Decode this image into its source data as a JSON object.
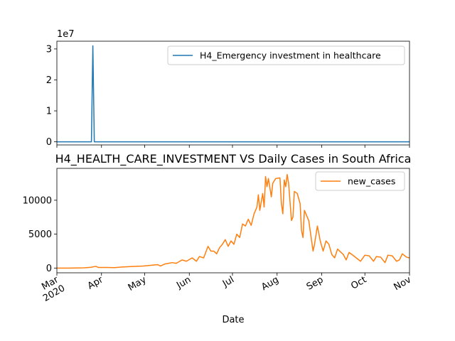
{
  "chart_data": [
    {
      "type": "line",
      "title": "",
      "xlabel": "",
      "ylabel": "",
      "x_axis": "date",
      "xlim": [
        "2020-03-01",
        "2020-11-01"
      ],
      "ylim": [
        -1000000,
        32500000
      ],
      "y_offset_label": "1e7",
      "yticks": [
        0,
        10000000,
        20000000,
        30000000
      ],
      "ytick_labels": [
        "0",
        "1",
        "2",
        "3"
      ],
      "legend": "upper right",
      "series": [
        {
          "name": "H4_Emergency investment in healthcare",
          "color": "#1f77b4",
          "points": [
            [
              "2020-03-01",
              0
            ],
            [
              "2020-03-25",
              0
            ],
            [
              "2020-03-26",
              31000000
            ],
            [
              "2020-03-27",
              0
            ],
            [
              "2020-11-01",
              0
            ]
          ]
        }
      ]
    },
    {
      "type": "line",
      "title": "H4_HEALTH_CARE_INVESTMENT VS Daily Cases in South Africa",
      "xlabel": "Date",
      "ylabel": "",
      "x_axis": "date",
      "xlim": [
        "2020-03-01",
        "2020-11-01"
      ],
      "ylim": [
        -700,
        14700
      ],
      "yticks": [
        0,
        5000,
        10000
      ],
      "ytick_labels": [
        "0",
        "5000",
        "10000"
      ],
      "xticks": [
        {
          "date": "2020-03-01",
          "label": "Mar",
          "sub": "2020"
        },
        {
          "date": "2020-04-01",
          "label": "Apr",
          "sub": ""
        },
        {
          "date": "2020-05-01",
          "label": "May",
          "sub": ""
        },
        {
          "date": "2020-06-01",
          "label": "Jun",
          "sub": ""
        },
        {
          "date": "2020-07-01",
          "label": "Jul",
          "sub": ""
        },
        {
          "date": "2020-08-01",
          "label": "Aug",
          "sub": ""
        },
        {
          "date": "2020-09-01",
          "label": "Sep",
          "sub": ""
        },
        {
          "date": "2020-10-01",
          "label": "Oct",
          "sub": ""
        },
        {
          "date": "2020-11-01",
          "label": "Nov",
          "sub": ""
        }
      ],
      "legend": "upper right",
      "series": [
        {
          "name": "new_cases",
          "color": "#ff7f0e",
          "points": [
            [
              "2020-03-01",
              0
            ],
            [
              "2020-03-10",
              0
            ],
            [
              "2020-03-20",
              30
            ],
            [
              "2020-03-25",
              120
            ],
            [
              "2020-03-28",
              250
            ],
            [
              "2020-03-30",
              80
            ],
            [
              "2020-04-05",
              90
            ],
            [
              "2020-04-10",
              60
            ],
            [
              "2020-04-15",
              150
            ],
            [
              "2020-04-20",
              200
            ],
            [
              "2020-04-25",
              250
            ],
            [
              "2020-04-30",
              300
            ],
            [
              "2020-05-05",
              400
            ],
            [
              "2020-05-10",
              500
            ],
            [
              "2020-05-12",
              300
            ],
            [
              "2020-05-15",
              600
            ],
            [
              "2020-05-20",
              800
            ],
            [
              "2020-05-23",
              700
            ],
            [
              "2020-05-27",
              1200
            ],
            [
              "2020-05-30",
              1000
            ],
            [
              "2020-06-03",
              1500
            ],
            [
              "2020-06-06",
              1000
            ],
            [
              "2020-06-08",
              1700
            ],
            [
              "2020-06-11",
              1500
            ],
            [
              "2020-06-14",
              3200
            ],
            [
              "2020-06-16",
              2500
            ],
            [
              "2020-06-18",
              2500
            ],
            [
              "2020-06-20",
              2100
            ],
            [
              "2020-06-22",
              3000
            ],
            [
              "2020-06-24",
              3500
            ],
            [
              "2020-06-26",
              4200
            ],
            [
              "2020-06-28",
              3200
            ],
            [
              "2020-06-30",
              4000
            ],
            [
              "2020-07-02",
              3500
            ],
            [
              "2020-07-04",
              5000
            ],
            [
              "2020-07-06",
              4500
            ],
            [
              "2020-07-08",
              6500
            ],
            [
              "2020-07-10",
              6200
            ],
            [
              "2020-07-12",
              7200
            ],
            [
              "2020-07-14",
              6300
            ],
            [
              "2020-07-16",
              8000
            ],
            [
              "2020-07-18",
              9000
            ],
            [
              "2020-07-19",
              10800
            ],
            [
              "2020-07-20",
              8500
            ],
            [
              "2020-07-22",
              11000
            ],
            [
              "2020-07-23",
              9000
            ],
            [
              "2020-07-24",
              13500
            ],
            [
              "2020-07-25",
              12000
            ],
            [
              "2020-07-26",
              13200
            ],
            [
              "2020-07-28",
              10500
            ],
            [
              "2020-07-29",
              12500
            ],
            [
              "2020-07-31",
              13200
            ],
            [
              "2020-08-03",
              13300
            ],
            [
              "2020-08-04",
              9500
            ],
            [
              "2020-08-05",
              8000
            ],
            [
              "2020-08-06",
              13000
            ],
            [
              "2020-08-07",
              12000
            ],
            [
              "2020-08-08",
              13800
            ],
            [
              "2020-08-09",
              12500
            ],
            [
              "2020-08-11",
              7000
            ],
            [
              "2020-08-12",
              7500
            ],
            [
              "2020-08-13",
              11300
            ],
            [
              "2020-08-15",
              11000
            ],
            [
              "2020-08-17",
              9500
            ],
            [
              "2020-08-18",
              5500
            ],
            [
              "2020-08-19",
              4500
            ],
            [
              "2020-08-20",
              8500
            ],
            [
              "2020-08-21",
              8000
            ],
            [
              "2020-08-23",
              7000
            ],
            [
              "2020-08-25",
              4000
            ],
            [
              "2020-08-26",
              2500
            ],
            [
              "2020-08-27",
              3500
            ],
            [
              "2020-08-29",
              6200
            ],
            [
              "2020-08-31",
              4000
            ],
            [
              "2020-09-02",
              2500
            ],
            [
              "2020-09-04",
              4000
            ],
            [
              "2020-09-06",
              3500
            ],
            [
              "2020-09-08",
              2000
            ],
            [
              "2020-09-10",
              1500
            ],
            [
              "2020-09-12",
              2800
            ],
            [
              "2020-09-14",
              2400
            ],
            [
              "2020-09-16",
              2000
            ],
            [
              "2020-09-18",
              1200
            ],
            [
              "2020-09-20",
              2300
            ],
            [
              "2020-09-22",
              2000
            ],
            [
              "2020-09-25",
              1500
            ],
            [
              "2020-09-28",
              1000
            ],
            [
              "2020-10-01",
              1900
            ],
            [
              "2020-10-04",
              1800
            ],
            [
              "2020-10-07",
              1000
            ],
            [
              "2020-10-09",
              1700
            ],
            [
              "2020-10-12",
              1600
            ],
            [
              "2020-10-15",
              800
            ],
            [
              "2020-10-17",
              1900
            ],
            [
              "2020-10-20",
              1800
            ],
            [
              "2020-10-23",
              1000
            ],
            [
              "2020-10-25",
              1200
            ],
            [
              "2020-10-27",
              2100
            ],
            [
              "2020-10-30",
              1600
            ],
            [
              "2020-11-01",
              1500
            ]
          ]
        }
      ]
    }
  ]
}
